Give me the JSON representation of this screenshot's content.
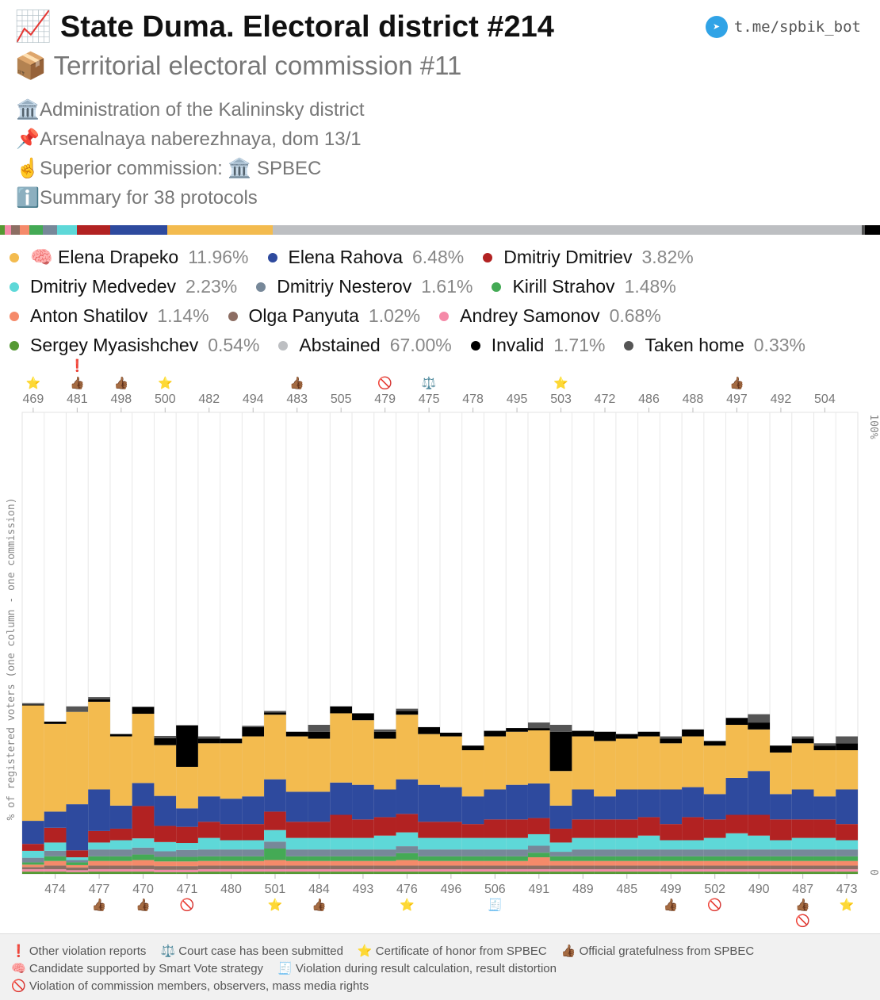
{
  "header": {
    "title_icon": "📈",
    "title": "State Duma. Electoral district #214",
    "subtitle_icon": "📦",
    "subtitle": "Territorial electoral commission #11",
    "telegram": "t.me/spbik_bot",
    "info": [
      {
        "icon": "🏛️",
        "text": "Administration of the Kalininsky district"
      },
      {
        "icon": "📌",
        "text": "Arsenalnaya naberezhnaya, dom 13/1"
      },
      {
        "icon": "☝️",
        "text": "Superior commission: 🏛️ SPBEC"
      },
      {
        "icon": "ℹ️",
        "text": "Summary for 38 protocols"
      }
    ]
  },
  "legend": [
    [
      {
        "name": "🧠 Elena Drapeko",
        "pct": "11.96%",
        "color": "#f3bb4f"
      },
      {
        "name": "Elena Rahova",
        "pct": "6.48%",
        "color": "#2e4a9e"
      },
      {
        "name": "Dmitriy Dmitriev",
        "pct": "3.82%",
        "color": "#b22222"
      }
    ],
    [
      {
        "name": "Dmitriy Medvedev",
        "pct": "2.23%",
        "color": "#5ed8d8"
      },
      {
        "name": "Dmitriy Nesterov",
        "pct": "1.61%",
        "color": "#778899"
      },
      {
        "name": "Kirill Strahov",
        "pct": "1.48%",
        "color": "#44aa55"
      }
    ],
    [
      {
        "name": "Anton Shatilov",
        "pct": "1.14%",
        "color": "#f58a6a"
      },
      {
        "name": "Olga Panyuta",
        "pct": "1.02%",
        "color": "#8d6e63"
      },
      {
        "name": "Andrey Samonov",
        "pct": "0.68%",
        "color": "#f58aa8"
      }
    ],
    [
      {
        "name": "Sergey Myasishchev",
        "pct": "0.54%",
        "color": "#559933"
      },
      {
        "name": "Abstained",
        "pct": "67.00%",
        "color": "#bdbfc2"
      },
      {
        "name": "Invalid",
        "pct": "1.71%",
        "color": "#000000"
      },
      {
        "name": "Taken home",
        "pct": "0.33%",
        "color": "#555555"
      }
    ]
  ],
  "chart_data": {
    "type": "bar",
    "stacked": true,
    "ylabel": "% of registered voters (one column - one commission)",
    "ylim": [
      0,
      100
    ],
    "y_tick_labels": [
      "0",
      "100%"
    ],
    "series_names": [
      "Sergey Myasishchev",
      "Andrey Samonov",
      "Olga Panyuta",
      "Anton Shatilov",
      "Kirill Strahov",
      "Dmitriy Nesterov",
      "Dmitriy Medvedev",
      "Dmitriy Dmitriev",
      "Elena Rahova",
      "Elena Drapeko",
      "Invalid",
      "Taken home"
    ],
    "series_colors": [
      "#559933",
      "#f58aa8",
      "#8d6e63",
      "#f58a6a",
      "#44aa55",
      "#778899",
      "#5ed8d8",
      "#b22222",
      "#2e4a9e",
      "#f3bb4f",
      "#000000",
      "#555555"
    ],
    "columns": [
      {
        "label": "469",
        "marks": [
          "star"
        ],
        "values": [
          0.5,
          0.5,
          0.5,
          0.5,
          0.5,
          1.0,
          1.5,
          1.5,
          5.0,
          25.0,
          0.2,
          0.3
        ]
      },
      {
        "label": "474",
        "marks": [],
        "values": [
          0.5,
          0.5,
          0.8,
          1.0,
          1.0,
          1.2,
          1.8,
          3.2,
          3.5,
          19.0,
          0.5,
          0
        ]
      },
      {
        "label": "481",
        "marks": [
          "exclaim",
          "thumb"
        ],
        "values": [
          0.4,
          0.4,
          0.6,
          0.5,
          0.6,
          0.5,
          0.6,
          1.5,
          10.0,
          20.0,
          0,
          1.2
        ]
      },
      {
        "label": "477",
        "marks": [
          "thumb"
        ],
        "values": [
          0.5,
          0.5,
          0.8,
          1.0,
          1.0,
          1.5,
          1.5,
          2.5,
          9.0,
          19.0,
          0.5,
          0.5
        ]
      },
      {
        "label": "498",
        "marks": [
          "thumb"
        ],
        "values": [
          0.5,
          0.5,
          0.8,
          1.0,
          1.0,
          1.5,
          2.0,
          2.5,
          5.0,
          15.0,
          0.5,
          0
        ]
      },
      {
        "label": "470",
        "marks": [
          "thumb"
        ],
        "values": [
          0.5,
          0.5,
          0.8,
          1.2,
          1.2,
          1.5,
          2.0,
          7.0,
          5.0,
          15.0,
          1.5,
          0
        ]
      },
      {
        "label": "500",
        "marks": [
          "star"
        ],
        "values": [
          0.4,
          0.5,
          0.8,
          1.0,
          1.0,
          1.2,
          2.0,
          3.5,
          6.5,
          11.0,
          1.5,
          0.5
        ]
      },
      {
        "label": "471",
        "marks": [
          "ban"
        ],
        "values": [
          0.4,
          0.5,
          0.8,
          1.0,
          1.0,
          1.5,
          1.5,
          3.5,
          4.0,
          9.0,
          9.0,
          0
        ]
      },
      {
        "label": "482",
        "marks": [],
        "values": [
          0.5,
          0.5,
          0.8,
          1.0,
          1.0,
          1.5,
          2.5,
          3.5,
          5.5,
          11.5,
          1.0,
          0.5
        ]
      },
      {
        "label": "480",
        "marks": [],
        "values": [
          0.5,
          0.5,
          0.8,
          1.0,
          1.0,
          1.5,
          2.0,
          3.5,
          5.5,
          12.0,
          1.0,
          0
        ]
      },
      {
        "label": "494",
        "marks": [],
        "values": [
          0.5,
          0.5,
          0.8,
          1.0,
          1.0,
          1.5,
          2.0,
          3.5,
          6.0,
          13.0,
          2.0,
          0.3
        ]
      },
      {
        "label": "501",
        "marks": [
          "star"
        ],
        "values": [
          0.5,
          0.5,
          0.8,
          1.2,
          2.5,
          1.5,
          2.5,
          4.0,
          7.0,
          14.0,
          0.5,
          0.3
        ]
      },
      {
        "label": "483",
        "marks": [
          "thumb"
        ],
        "values": [
          0.5,
          0.5,
          0.8,
          1.0,
          1.0,
          1.5,
          2.5,
          3.5,
          6.5,
          12.0,
          1.0,
          0
        ]
      },
      {
        "label": "484",
        "marks": [
          "thumb"
        ],
        "values": [
          0.5,
          0.5,
          0.8,
          1.0,
          1.0,
          1.5,
          2.5,
          3.5,
          6.5,
          11.5,
          1.5,
          1.5
        ]
      },
      {
        "label": "505",
        "marks": [],
        "values": [
          0.5,
          0.5,
          0.8,
          1.0,
          1.0,
          1.5,
          2.5,
          5.0,
          7.0,
          15.0,
          1.5,
          0
        ]
      },
      {
        "label": "493",
        "marks": [],
        "values": [
          0.5,
          0.5,
          0.8,
          1.0,
          1.0,
          1.5,
          2.5,
          4.0,
          7.5,
          14.0,
          1.5,
          0
        ]
      },
      {
        "label": "479",
        "marks": [
          "ban"
        ],
        "values": [
          0.5,
          0.5,
          0.8,
          1.0,
          1.0,
          1.5,
          3.0,
          4.0,
          6.0,
          11.0,
          1.5,
          0.5
        ]
      },
      {
        "label": "476",
        "marks": [
          "star"
        ],
        "values": [
          0.5,
          0.5,
          0.8,
          1.2,
          1.5,
          1.5,
          3.0,
          4.0,
          7.5,
          14.0,
          0.8,
          0.5
        ]
      },
      {
        "label": "475",
        "marks": [
          "scales"
        ],
        "values": [
          0.5,
          0.5,
          0.8,
          1.0,
          1.0,
          1.5,
          2.5,
          3.5,
          8.0,
          11.0,
          1.5,
          0
        ]
      },
      {
        "label": "496",
        "marks": [],
        "values": [
          0.5,
          0.5,
          0.8,
          1.0,
          1.0,
          1.5,
          2.5,
          3.5,
          7.5,
          11.0,
          0.8,
          0
        ]
      },
      {
        "label": "478",
        "marks": [],
        "values": [
          0.5,
          0.5,
          0.8,
          1.0,
          1.0,
          1.5,
          2.5,
          3.0,
          6.0,
          10.0,
          1.0,
          0
        ]
      },
      {
        "label": "506",
        "marks": [
          "ledger"
        ],
        "values": [
          0.5,
          0.5,
          0.8,
          1.0,
          1.0,
          1.5,
          2.5,
          4.0,
          6.5,
          11.5,
          1.2,
          0
        ]
      },
      {
        "label": "495",
        "marks": [],
        "values": [
          0.5,
          0.5,
          0.8,
          1.0,
          1.0,
          1.5,
          2.5,
          4.0,
          7.5,
          11.5,
          0.8,
          0
        ]
      },
      {
        "label": "491",
        "marks": [],
        "values": [
          0.5,
          0.5,
          0.8,
          1.8,
          1.0,
          1.5,
          2.5,
          3.5,
          7.5,
          11.5,
          0.5,
          1.2
        ]
      },
      {
        "label": "503",
        "marks": [
          "star"
        ],
        "values": [
          0.5,
          0.5,
          0.8,
          1.0,
          1.0,
          1.0,
          2.0,
          3.0,
          5.0,
          7.5,
          8.5,
          1.5
        ]
      },
      {
        "label": "489",
        "marks": [],
        "values": [
          0.5,
          0.5,
          0.8,
          1.0,
          1.0,
          1.5,
          2.5,
          4.0,
          6.5,
          11.5,
          1.2,
          0
        ]
      },
      {
        "label": "472",
        "marks": [],
        "values": [
          0.5,
          0.5,
          0.8,
          1.0,
          1.0,
          1.5,
          2.5,
          4.0,
          5.0,
          12.0,
          2.0,
          0
        ]
      },
      {
        "label": "485",
        "marks": [],
        "values": [
          0.5,
          0.5,
          0.8,
          1.0,
          1.0,
          1.5,
          2.5,
          4.0,
          6.5,
          11.0,
          1.0,
          0
        ]
      },
      {
        "label": "486",
        "marks": [],
        "values": [
          0.5,
          0.5,
          0.8,
          1.0,
          1.0,
          1.5,
          3.0,
          4.0,
          6.0,
          11.5,
          1.0,
          0
        ]
      },
      {
        "label": "499",
        "marks": [
          "thumb"
        ],
        "values": [
          0.5,
          0.5,
          0.8,
          1.0,
          1.0,
          1.5,
          2.0,
          3.5,
          7.5,
          10.0,
          1.0,
          0.5
        ]
      },
      {
        "label": "488",
        "marks": [],
        "values": [
          0.5,
          0.5,
          0.8,
          1.0,
          1.0,
          1.5,
          2.0,
          5.0,
          6.5,
          11.0,
          1.5,
          0
        ]
      },
      {
        "label": "502",
        "marks": [
          "ban"
        ],
        "values": [
          0.5,
          0.5,
          0.8,
          1.0,
          1.0,
          1.5,
          2.5,
          4.0,
          5.5,
          10.5,
          1.0,
          0
        ]
      },
      {
        "label": "497",
        "marks": [
          "thumb"
        ],
        "values": [
          0.5,
          0.5,
          0.8,
          1.0,
          1.0,
          1.5,
          3.5,
          4.0,
          8.0,
          11.5,
          1.5,
          0
        ]
      },
      {
        "label": "490",
        "marks": [],
        "values": [
          0.5,
          0.5,
          0.8,
          1.0,
          1.0,
          1.5,
          3.0,
          4.5,
          9.5,
          9.0,
          1.5,
          1.8
        ]
      },
      {
        "label": "492",
        "marks": [],
        "values": [
          0.5,
          0.5,
          0.8,
          1.0,
          1.0,
          1.5,
          2.0,
          4.5,
          5.5,
          9.0,
          1.5,
          0
        ]
      },
      {
        "label": "487",
        "marks": [
          "thumb",
          "ban"
        ],
        "values": [
          0.5,
          0.5,
          0.8,
          1.0,
          1.0,
          1.5,
          2.5,
          4.0,
          6.5,
          10.0,
          1.0,
          0.5
        ]
      },
      {
        "label": "504",
        "marks": [],
        "values": [
          0.5,
          0.5,
          0.8,
          1.0,
          1.0,
          1.5,
          2.5,
          4.0,
          5.0,
          10.0,
          1.0,
          0.5
        ]
      },
      {
        "label": "473",
        "marks": [
          "star"
        ],
        "values": [
          0.5,
          0.5,
          0.8,
          1.0,
          1.0,
          1.5,
          2.0,
          3.5,
          7.5,
          8.5,
          1.5,
          1.5
        ]
      }
    ],
    "summary_bar": [
      {
        "name": "Sergey Myasishchev",
        "pct": 0.54
      },
      {
        "name": "Andrey Samonov",
        "pct": 0.68
      },
      {
        "name": "Olga Panyuta",
        "pct": 1.02
      },
      {
        "name": "Anton Shatilov",
        "pct": 1.14
      },
      {
        "name": "Kirill Strahov",
        "pct": 1.48
      },
      {
        "name": "Dmitriy Nesterov",
        "pct": 1.61
      },
      {
        "name": "Dmitriy Medvedev",
        "pct": 2.23
      },
      {
        "name": "Dmitriy Dmitriev",
        "pct": 3.82
      },
      {
        "name": "Elena Rahova",
        "pct": 6.48
      },
      {
        "name": "Elena Drapeko",
        "pct": 11.96
      },
      {
        "name": "Abstained",
        "pct": 67.0
      },
      {
        "name": "Taken home",
        "pct": 0.33
      },
      {
        "name": "Invalid",
        "pct": 1.71
      }
    ]
  },
  "mark_icons": {
    "star": "⭐",
    "thumb": "👍🏾",
    "ban": "🚫",
    "exclaim": "❗",
    "scales": "⚖️",
    "ledger": "🧾"
  },
  "footer": [
    [
      {
        "icon": "❗",
        "text": "Other violation reports"
      },
      {
        "icon": "⚖️",
        "text": "Court case has been submitted"
      },
      {
        "icon": "⭐",
        "text": "Certificate of honor from SPBEC"
      },
      {
        "icon": "👍🏾",
        "text": "Official gratefulness from SPBEC"
      }
    ],
    [
      {
        "icon": "🧠",
        "text": "Candidate supported by Smart Vote strategy"
      },
      {
        "icon": "🧾",
        "text": "Violation during result calculation, result distortion"
      }
    ],
    [
      {
        "icon": "🚫",
        "text": "Violation of commission members, observers, mass media rights"
      }
    ]
  ]
}
